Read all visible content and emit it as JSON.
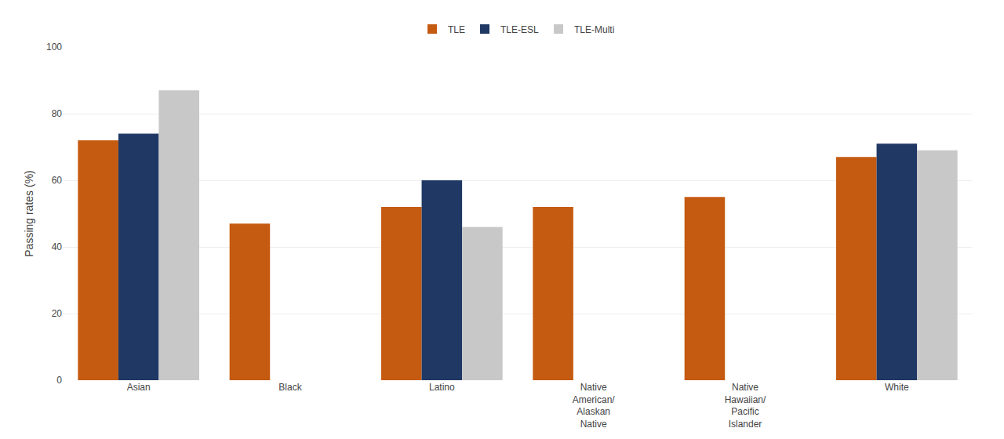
{
  "chart_data": {
    "type": "bar",
    "categories": [
      "Asian",
      "Black",
      "Latino",
      "Native\nAmerican/\nAlaskan\nNative",
      "Native\nHawaiian/\nPacific\nIslander",
      "White"
    ],
    "series": [
      {
        "name": "TLE",
        "color": "#C55A11",
        "values": [
          72,
          47,
          52,
          52,
          55,
          67
        ]
      },
      {
        "name": "TLE-ESL",
        "color": "#1F3864",
        "values": [
          74,
          null,
          60,
          null,
          null,
          71
        ]
      },
      {
        "name": "TLE-Multi",
        "color": "#C8C8C8",
        "values": [
          87,
          null,
          46,
          null,
          null,
          69
        ]
      }
    ],
    "ylabel": "Passing rates (%)",
    "ylim": [
      0,
      100
    ],
    "yticks": [
      0,
      20,
      40,
      60,
      80,
      100
    ],
    "grid": true,
    "legend": "top"
  }
}
